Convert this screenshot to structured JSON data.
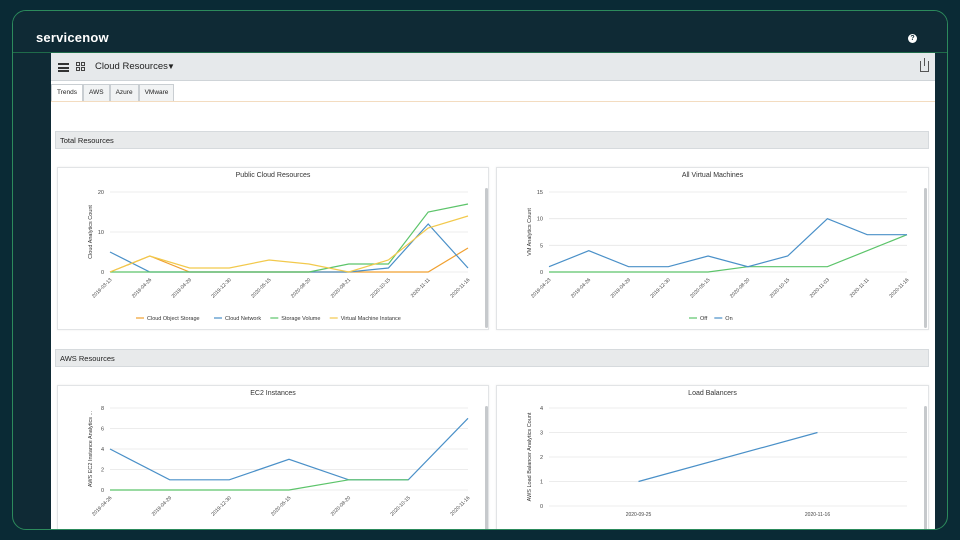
{
  "app": {
    "brand": "servicenow",
    "title": "Cloud Resources"
  },
  "icons": {
    "menu": "hamburger-icon",
    "grid": "grid-icon",
    "dropdown": "caret-down-icon",
    "share": "share-icon",
    "help": "help-icon"
  },
  "tabs": [
    "Trends",
    "AWS",
    "Azure",
    "VMware"
  ],
  "sections": {
    "total": "Total Resources",
    "aws": "AWS Resources"
  },
  "colors": {
    "orange": "#f0a030",
    "blue": "#4a90c8",
    "green": "#5cc46a",
    "yellow": "#f2c94c"
  },
  "chart_data": [
    {
      "type": "line",
      "title": "Public Cloud Resources",
      "ylabel": "Cloud Analytics Count",
      "ylim": [
        0,
        20
      ],
      "yticks": [
        0,
        10,
        20
      ],
      "categories": [
        "2019-03-13",
        "2019-04-26",
        "2019-04-29",
        "2019-12-30",
        "2020-05-15",
        "2020-08-20",
        "2020-08-21",
        "2020-10-15",
        "2020-11-11",
        "2020-11-16"
      ],
      "series": [
        {
          "name": "Cloud Object Storage",
          "color": "#f0a030",
          "values": [
            0,
            4,
            0,
            0,
            0,
            0,
            0,
            0,
            0,
            6
          ]
        },
        {
          "name": "Cloud Network",
          "color": "#4a90c8",
          "values": [
            5,
            0,
            0,
            0,
            0,
            0,
            0,
            1,
            12,
            1
          ]
        },
        {
          "name": "Storage Volume",
          "color": "#5cc46a",
          "values": [
            0,
            0,
            0,
            0,
            0,
            0,
            2,
            2,
            15,
            17
          ]
        },
        {
          "name": "Virtual Machine Instance",
          "color": "#f2c94c",
          "values": [
            0,
            4,
            1,
            1,
            3,
            2,
            0,
            3,
            11,
            14
          ]
        }
      ]
    },
    {
      "type": "line",
      "title": "All Virtual Machines",
      "ylabel": "VM Analytics Count",
      "ylim": [
        0,
        15
      ],
      "yticks": [
        0,
        5,
        10,
        15
      ],
      "categories": [
        "2019-04-23",
        "2019-04-26",
        "2019-04-29",
        "2019-12-30",
        "2020-05-15",
        "2020-08-20",
        "2020-10-15",
        "2020-11-03",
        "2020-11-11",
        "2020-11-16"
      ],
      "series": [
        {
          "name": "Off",
          "color": "#5cc46a",
          "values": [
            0,
            0,
            0,
            0,
            0,
            1,
            1,
            1,
            4,
            7
          ]
        },
        {
          "name": "On",
          "color": "#4a90c8",
          "values": [
            1,
            4,
            1,
            1,
            3,
            1,
            3,
            10,
            7,
            7
          ]
        }
      ]
    },
    {
      "type": "line",
      "title": "EC2 Instances",
      "ylabel": "AWS EC2 Instance Analytics ...",
      "ylim": [
        0,
        8
      ],
      "yticks": [
        0,
        2,
        4,
        6,
        8
      ],
      "categories": [
        "2019-04-26",
        "2019-04-29",
        "2019-12-30",
        "2020-05-15",
        "2020-08-20",
        "2020-10-15",
        "2020-11-16"
      ],
      "series": [
        {
          "name": "",
          "color": "#4a90c8",
          "values": [
            4,
            1,
            1,
            3,
            1,
            1,
            7
          ]
        },
        {
          "name": "",
          "color": "#5cc46a",
          "values": [
            0,
            0,
            0,
            0,
            1,
            1,
            null
          ]
        }
      ]
    },
    {
      "type": "line",
      "title": "Load Balancers",
      "ylabel": "AWS Load Balancer Analytics Count",
      "ylim": [
        0,
        4
      ],
      "yticks": [
        0,
        1,
        2,
        3,
        4
      ],
      "categories": [
        "2020-09-25",
        "2020-11-16"
      ],
      "series": [
        {
          "name": "",
          "color": "#4a90c8",
          "values": [
            1,
            3
          ]
        }
      ]
    }
  ]
}
